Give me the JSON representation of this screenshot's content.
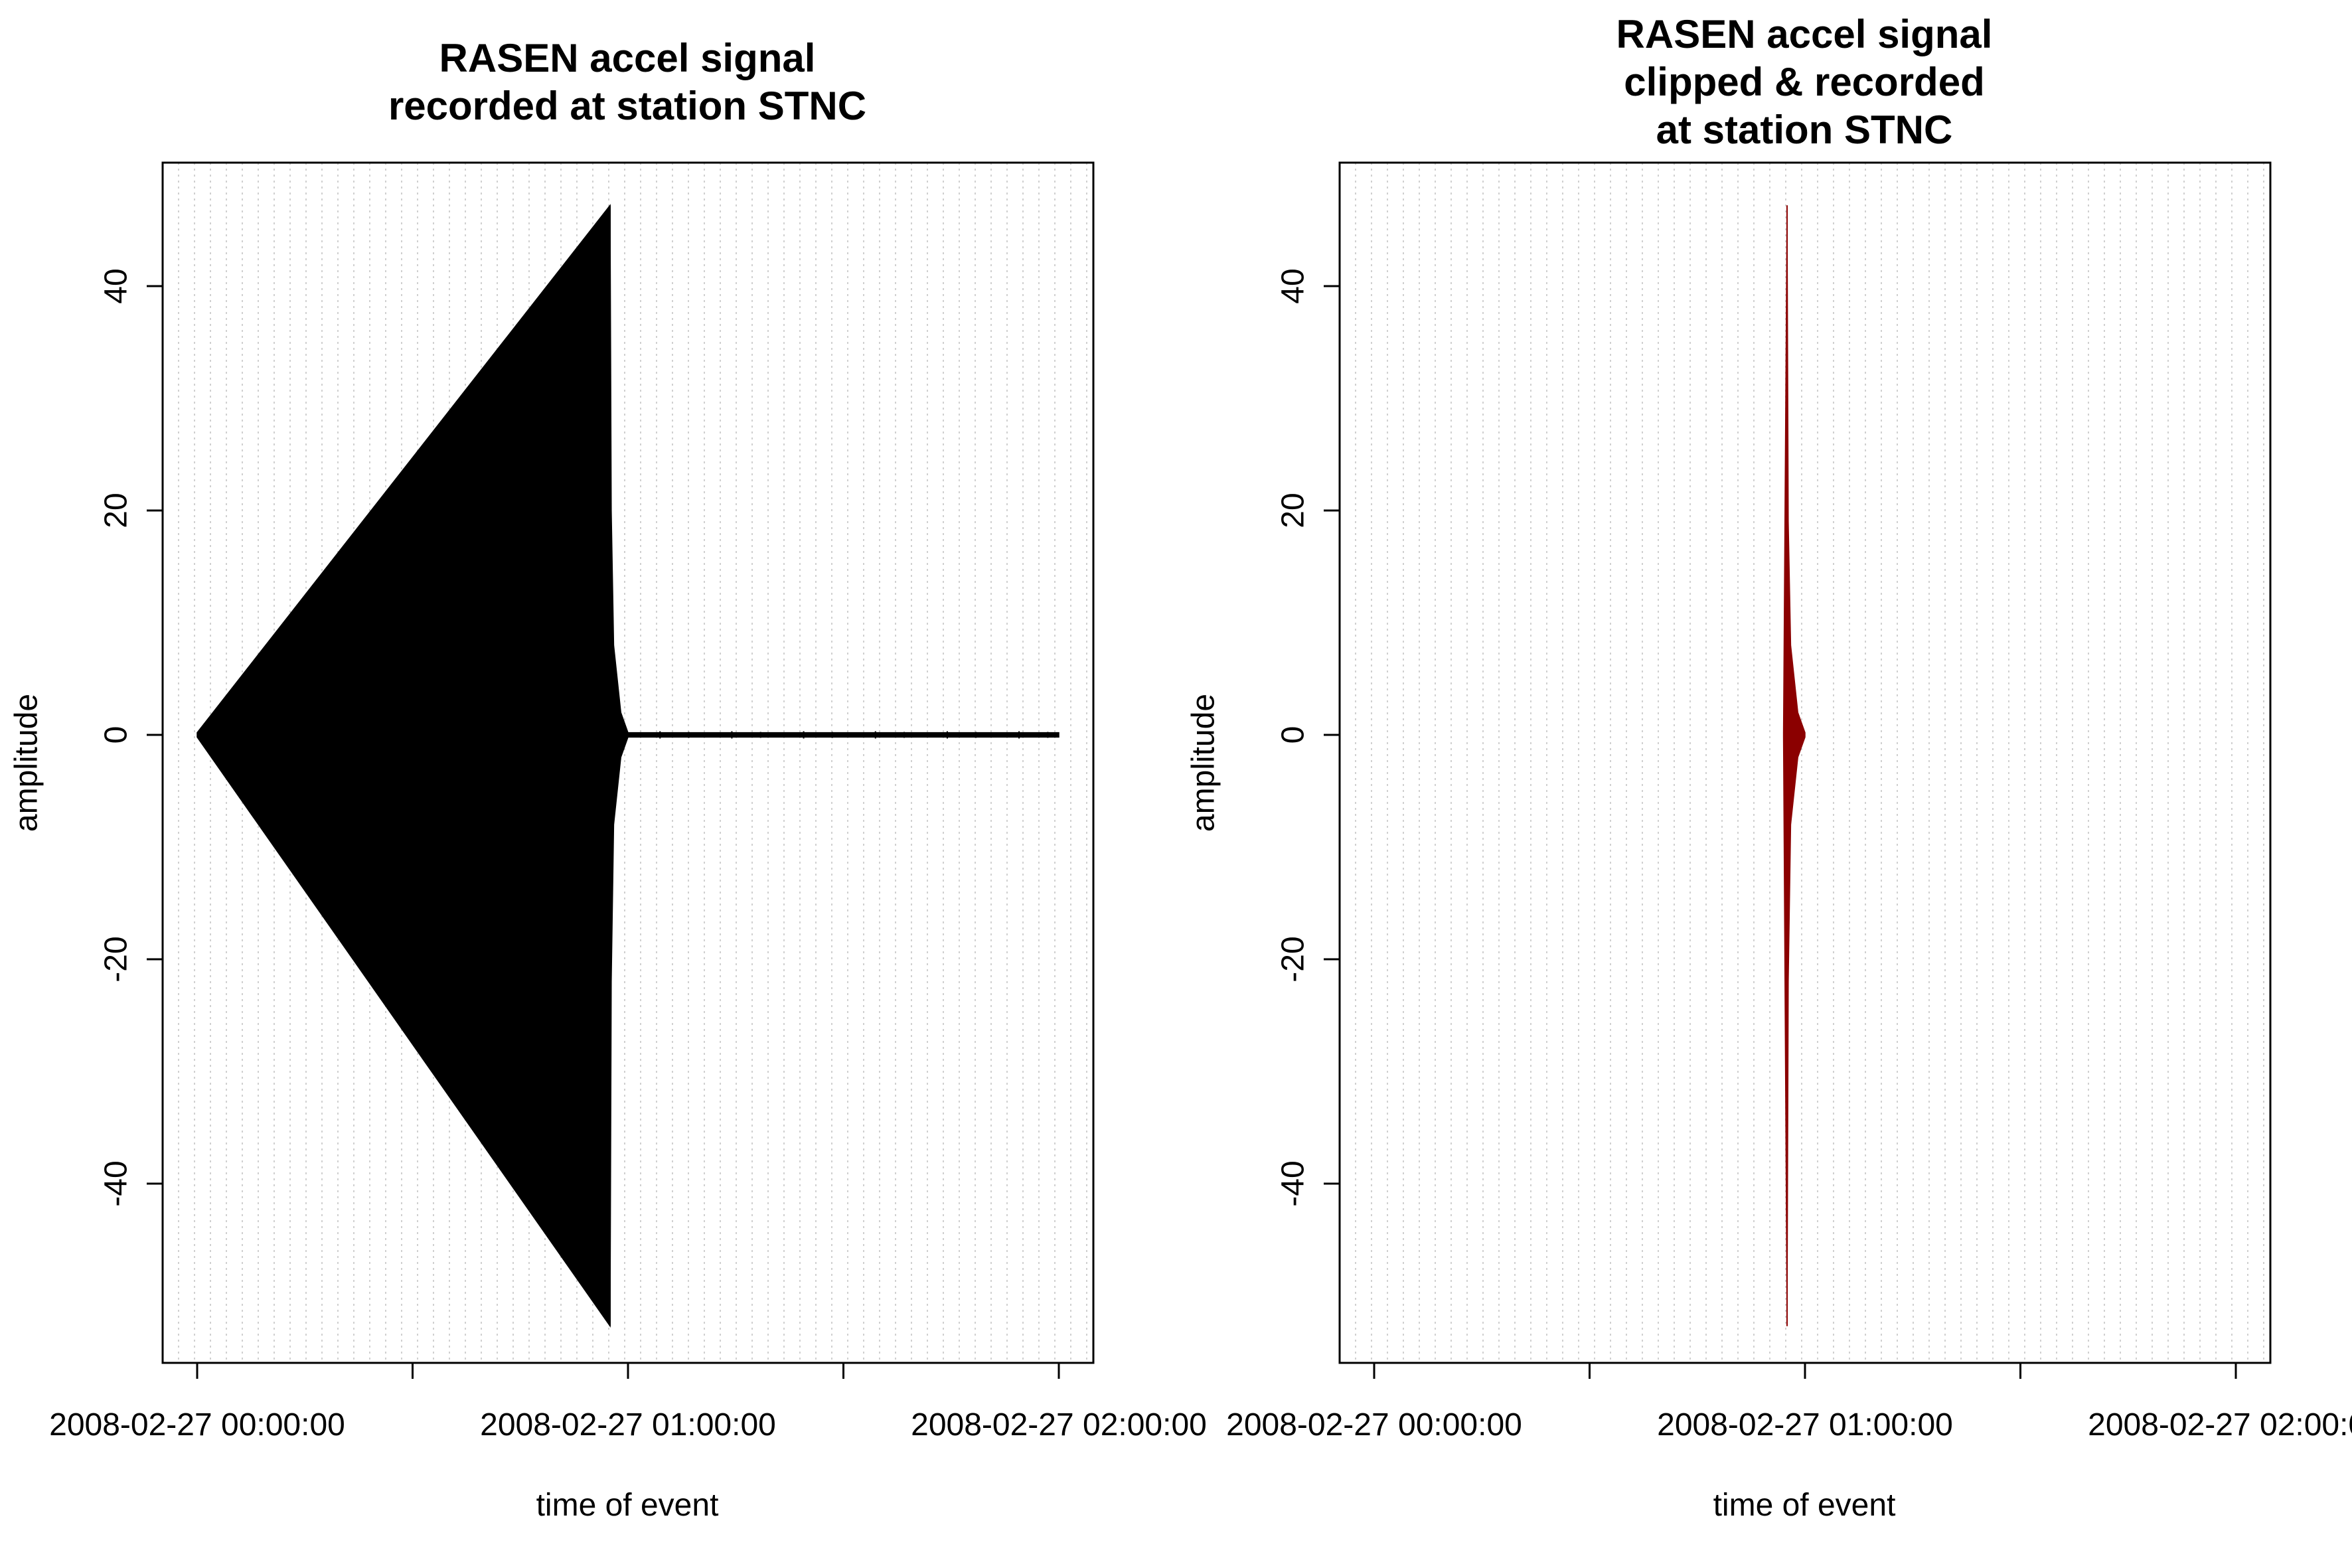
{
  "chart_data": [
    {
      "type": "line",
      "title": "RASEN accel signal\nrecorded at station STNC",
      "xlabel": "time of event",
      "ylabel": "amplitude",
      "x_tick_labels": [
        "2008-02-27 00:00:00",
        "2008-02-27 01:00:00",
        "2008-02-27 02:00:00"
      ],
      "y_ticks": [
        -40,
        -20,
        0,
        20,
        40
      ],
      "x_range": [
        "2008-02-27 00:00:00",
        "2008-02-27 02:00:00"
      ],
      "ylim": [
        -52.7,
        47.2
      ],
      "grid": "vertical dotted lines",
      "color": "#000000",
      "series": [
        {
          "x": [
            "2008-02-27 00:00:00",
            "2008-02-27 00:57:30",
            "2008-02-27 00:57:40",
            "2008-02-27 00:58:00",
            "2008-02-27 00:59:00",
            "2008-02-27 01:00:00",
            "2008-02-27 02:00:00"
          ],
          "max": [
            0.2,
            47.2,
            20,
            8,
            2,
            0.2,
            0.2
          ],
          "min": [
            -0.2,
            -52.7,
            -22,
            -8,
            -2,
            -0.2,
            -0.2
          ]
        }
      ]
    },
    {
      "type": "line",
      "title": "RASEN accel signal\nclipped & recorded\nat station STNC",
      "xlabel": "time of event",
      "ylabel": "amplitude",
      "x_tick_labels": [
        "2008-02-27 00:00:00",
        "2008-02-27 01:00:00",
        "2008-02-27 02:00:00"
      ],
      "y_ticks": [
        -40,
        -20,
        0,
        20,
        40
      ],
      "x_range": [
        "2008-02-27 00:00:00",
        "2008-02-27 02:00:00"
      ],
      "ylim": [
        -52.7,
        47.2
      ],
      "grid": "vertical dotted lines",
      "color": "#8b0000",
      "series": [
        {
          "x": [
            "2008-02-27 00:57:00",
            "2008-02-27 00:57:30",
            "2008-02-27 00:57:40",
            "2008-02-27 00:58:00",
            "2008-02-27 00:59:00",
            "2008-02-27 01:00:00"
          ],
          "max": [
            0.2,
            47.2,
            19,
            8,
            2,
            0.2
          ],
          "min": [
            -0.2,
            -52.7,
            -22,
            -8,
            -2,
            -0.2
          ]
        }
      ]
    }
  ]
}
